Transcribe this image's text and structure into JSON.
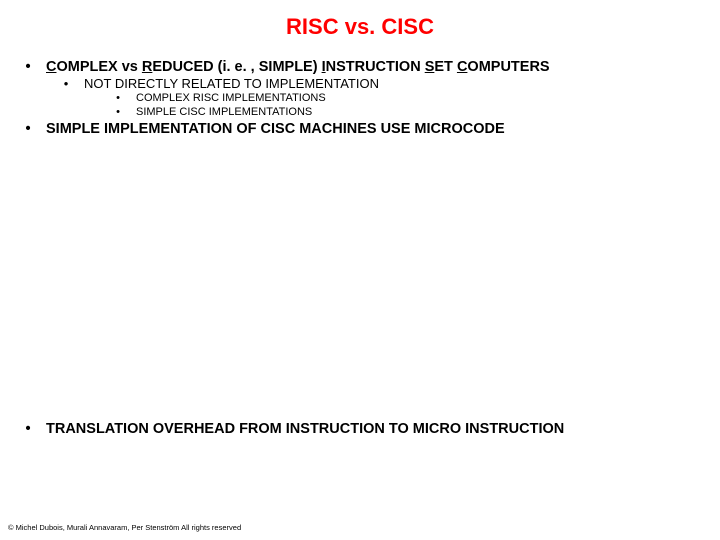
{
  "title": {
    "text": "RISC vs. CISC",
    "color": "#ff0000",
    "fontsize": 22
  },
  "style": {
    "text_color": "#000000",
    "background": "#ffffff",
    "lvl0_fontsize": 14.5,
    "lvl1_fontsize": 13,
    "lvl2_fontsize": 11,
    "bullet_glyph": "•"
  },
  "items": [
    {
      "level": 0,
      "segments": [
        {
          "t": "C",
          "u": true
        },
        {
          "t": "OMPLEX vs "
        },
        {
          "t": "R",
          "u": true
        },
        {
          "t": "EDUCED (i. e. , SIMPLE) "
        },
        {
          "t": "I",
          "u": true
        },
        {
          "t": "NSTRUCTION "
        },
        {
          "t": "S",
          "u": true
        },
        {
          "t": "ET "
        },
        {
          "t": "C",
          "u": true
        },
        {
          "t": "OMPUTERS"
        }
      ]
    },
    {
      "level": 1,
      "segments": [
        {
          "t": "NOT DIRECTLY RELATED TO IMPLEMENTATION"
        }
      ]
    },
    {
      "level": 2,
      "segments": [
        {
          "t": "COMPLEX RISC IMPLEMENTATIONS"
        }
      ]
    },
    {
      "level": 2,
      "segments": [
        {
          "t": "SIMPLE CISC IMPLEMENTATIONS"
        }
      ]
    },
    {
      "level": 0,
      "segments": [
        {
          "t": "SIMPLE IMPLEMENTATION OF CISC MACHINES USE MICROCODE"
        }
      ]
    },
    {
      "level": 0,
      "gap_before": 282,
      "segments": [
        {
          "t": "TRANSLATION OVERHEAD FROM INSTRUCTION TO MICRO INSTRUCTION"
        }
      ]
    }
  ],
  "footer": {
    "text": "© Michel Dubois, Murali Annavaram, Per Stenström All rights reserved",
    "fontsize": 7.5,
    "color": "#000000"
  }
}
